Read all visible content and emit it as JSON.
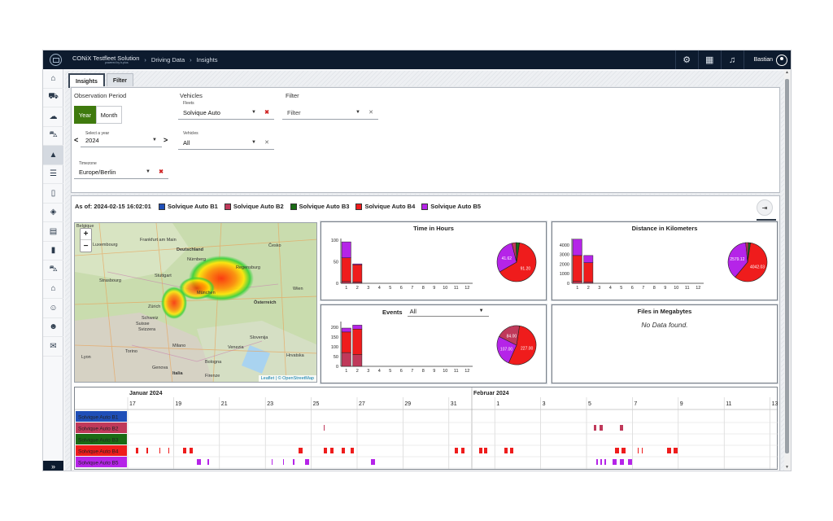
{
  "topbar": {
    "brand_title": "CONiX Testfleet Solution",
    "brand_sub": "powered by b-plus",
    "breadcrumb": [
      "Driving Data",
      "Insights"
    ],
    "user_name": "Bastian"
  },
  "tabs": [
    {
      "label": "Insights",
      "active": true
    },
    {
      "label": "Filter",
      "active": false
    }
  ],
  "filters": {
    "observation_period_label": "Observation Period",
    "year_button": "Year",
    "month_button": "Month",
    "select_year_label": "Select a year",
    "year_value": "2024",
    "prev_arrow": "<",
    "next_arrow": ">",
    "timezone_label": "Timezone",
    "timezone_value": "Europe/Berlin",
    "vehicles_section_label": "Vehicles",
    "fleets_label": "Fleets",
    "fleets_value": "Solvique Auto",
    "vehicles_label": "Vehicles",
    "vehicles_value": "All",
    "filter_section_label": "Filter",
    "filter_placeholder": "Filter"
  },
  "main": {
    "as_of": "As of: 2024-02-15 16:02:01",
    "export_tooltip": "Export",
    "vehicles": [
      {
        "name": "Solvique Auto B1",
        "color": "#1f4fb8"
      },
      {
        "name": "Solvique Auto B2",
        "color": "#c0395a"
      },
      {
        "name": "Solvique Auto B3",
        "color": "#1a6b14"
      },
      {
        "name": "Solvique Auto B4",
        "color": "#ef1c1c"
      },
      {
        "name": "Solvique Auto B5",
        "color": "#b524e8"
      }
    ]
  },
  "map": {
    "attribution": "Leaflet | © OpenStreetMap",
    "labels": [
      "Belgique",
      "Luxembourg",
      "Frankfurt am Main",
      "Deutschland",
      "Nürnberg",
      "Česko",
      "Stuttgart",
      "Regensburg",
      "München",
      "Zürich",
      "Österreich",
      "Schweiz",
      "Suisse",
      "Svizzera",
      "Slovenija",
      "Hrvatska",
      "Milano",
      "Venezia",
      "Torino",
      "Genova",
      "Bologna",
      "Firenze",
      "Italia",
      "Wien",
      "Strasbourg",
      "Lyon"
    ]
  },
  "chart_data": [
    {
      "type": "bar",
      "title": "Time in Hours",
      "categories": [
        "1",
        "2",
        "3",
        "4",
        "5",
        "6",
        "7",
        "8",
        "9",
        "10",
        "11",
        "12"
      ],
      "ylim": [
        0,
        100
      ],
      "yticks": [
        "0",
        "50",
        "100"
      ],
      "series": [
        {
          "name": "Solvique Auto B2",
          "values": [
            4,
            3,
            0,
            0,
            0,
            0,
            0,
            0,
            0,
            0,
            0,
            0
          ]
        },
        {
          "name": "Solvique Auto B4",
          "values": [
            55,
            40,
            0,
            0,
            0,
            0,
            0,
            0,
            0,
            0,
            0,
            0
          ]
        },
        {
          "name": "Solvique Auto B5",
          "values": [
            37,
            2,
            0,
            0,
            0,
            0,
            0,
            0,
            0,
            0,
            0,
            0
          ]
        }
      ],
      "pie": {
        "values": [
          91.2,
          41.62,
          5,
          4
        ],
        "labels": [
          "91.20",
          "41.62"
        ]
      }
    },
    {
      "type": "bar",
      "title": "Distance in Kilometers",
      "categories": [
        "1",
        "2",
        "3",
        "4",
        "5",
        "6",
        "7",
        "8",
        "9",
        "10",
        "11",
        "12"
      ],
      "ylim": [
        0,
        4500
      ],
      "yticks": [
        "0",
        "1000",
        "2000",
        "3000",
        "4000"
      ],
      "series": [
        {
          "name": "Solvique Auto B2",
          "values": [
            200,
            150,
            0,
            0,
            0,
            0,
            0,
            0,
            0,
            0,
            0,
            0
          ]
        },
        {
          "name": "Solvique Auto B4",
          "values": [
            2700,
            2000,
            0,
            0,
            0,
            0,
            0,
            0,
            0,
            0,
            0,
            0
          ]
        },
        {
          "name": "Solvique Auto B5",
          "values": [
            1700,
            750,
            0,
            0,
            0,
            0,
            0,
            0,
            0,
            0,
            0,
            0
          ]
        }
      ],
      "pie": {
        "values": [
          4042.03,
          2579.12,
          150,
          120
        ],
        "labels": [
          "4042.03",
          "2579.12"
        ]
      }
    },
    {
      "type": "bar",
      "title": "Events",
      "categories": [
        "1",
        "2",
        "3",
        "4",
        "5",
        "6",
        "7",
        "8",
        "9",
        "10",
        "11",
        "12"
      ],
      "ylim": [
        0,
        220
      ],
      "yticks": [
        "0",
        "50",
        "100",
        "150",
        "200"
      ],
      "series": [
        {
          "name": "Solvique Auto B2",
          "values": [
            70,
            60,
            0,
            0,
            0,
            0,
            0,
            0,
            0,
            0,
            0,
            0
          ]
        },
        {
          "name": "Solvique Auto B4",
          "values": [
            105,
            130,
            0,
            0,
            0,
            0,
            0,
            0,
            0,
            0,
            0,
            0
          ]
        },
        {
          "name": "Solvique Auto B5",
          "values": [
            20,
            20,
            0,
            0,
            0,
            0,
            0,
            0,
            0,
            0,
            0,
            0
          ]
        }
      ],
      "pie": {
        "values": [
          227.0,
          107.0,
          84
        ],
        "labels": [
          "227.00",
          "107.00",
          "84.00"
        ]
      }
    }
  ],
  "events_select": {
    "label": "Events",
    "value": "All"
  },
  "files_panel": {
    "title": "Files in Megabytes",
    "no_data": "No Data found."
  },
  "timeline": {
    "months": [
      "Januar 2024",
      "Februar 2024"
    ],
    "day_labels": [
      "17",
      "19",
      "21",
      "23",
      "25",
      "27",
      "29",
      "31",
      "1",
      "3",
      "5",
      "7",
      "9",
      "11",
      "13"
    ],
    "rows": [
      "Solvique Auto B1",
      "Solvique Auto B2",
      "Solvique Auto B3",
      "Solvique Auto B4",
      "Solvique Auto B5"
    ]
  }
}
